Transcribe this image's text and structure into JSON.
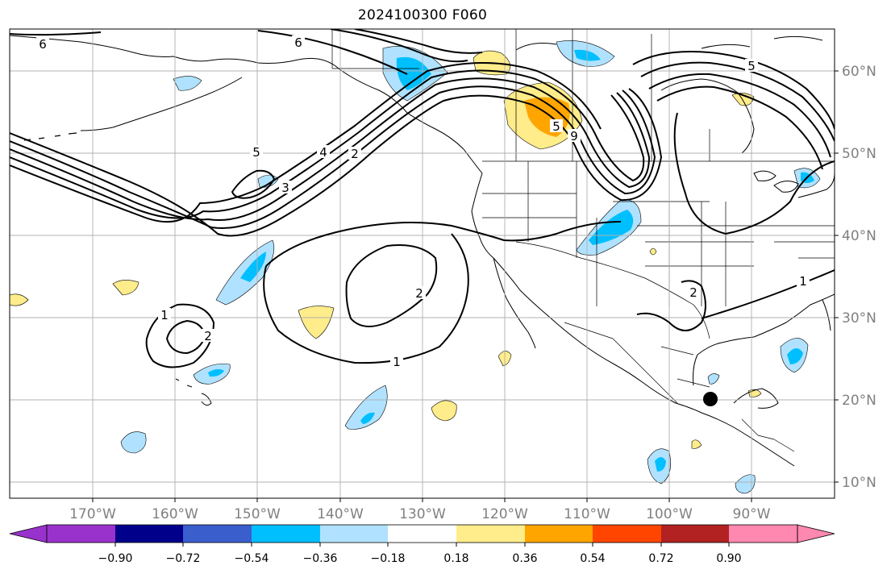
{
  "title": "2024100300 F060",
  "map": {
    "type": "contour map",
    "projection": "cylindrical",
    "lon_range": [
      -180,
      -80
    ],
    "lat_range": [
      8,
      65
    ],
    "lon_ticks": [
      "170°W",
      "160°W",
      "150°W",
      "140°W",
      "130°W",
      "120°W",
      "110°W",
      "100°W",
      "90°W"
    ],
    "lat_ticks": [
      "60°N",
      "50°N",
      "40°N",
      "30°N",
      "20°N",
      "10°N"
    ],
    "grid": true,
    "contour_labels": [
      "6",
      "6",
      "5",
      "4",
      "2",
      "3",
      "2",
      "1",
      "2",
      "1",
      "5",
      "5",
      "9",
      "2",
      "1"
    ],
    "marker": {
      "symbol": "black dot",
      "lon": -94.6,
      "lat": 20.0
    }
  },
  "colorbar": {
    "ticks": [
      "−0.90",
      "−0.72",
      "−0.54",
      "−0.36",
      "−0.18",
      "0.18",
      "0.36",
      "0.54",
      "0.72",
      "0.90"
    ],
    "colors": [
      "#9932cc",
      "#00008b",
      "#3a5fcd",
      "#00bfff",
      "#b0e2ff",
      "#ffffff",
      "#ffec8b",
      "#ffa500",
      "#ff4500",
      "#b22222",
      "#ff88b0"
    ],
    "extend": "both"
  }
}
